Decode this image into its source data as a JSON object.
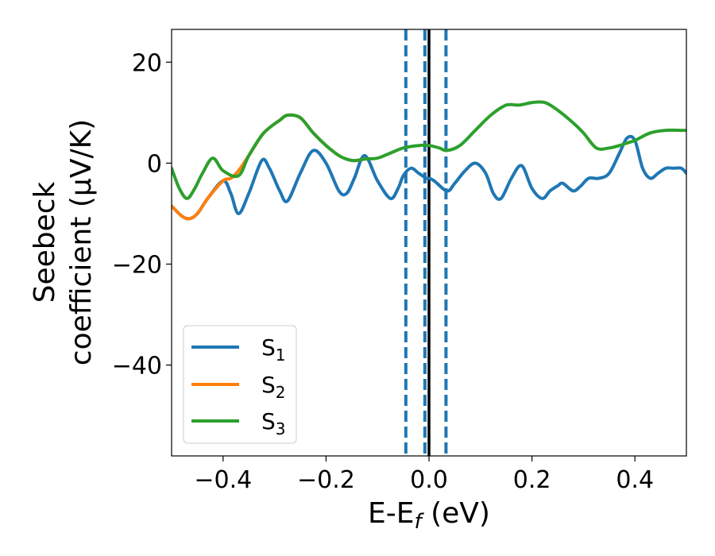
{
  "chart_data": {
    "type": "line",
    "title": "",
    "xlabel": {
      "main": "E-E",
      "sub": "f",
      "unit": " (eV)"
    },
    "ylabel": {
      "line1": "Seebeck",
      "line2": "coefficient  (μV/K)"
    },
    "xlim": [
      -0.5,
      0.5
    ],
    "ylim": [
      -58,
      26.5
    ],
    "x_ticks": [
      -0.4,
      -0.2,
      0.0,
      0.2,
      0.4
    ],
    "x_tick_labels": [
      "−0.4",
      "−0.2",
      "0.0",
      "0.2",
      "0.4"
    ],
    "y_ticks": [
      20,
      0,
      -20,
      -40
    ],
    "y_tick_labels": [
      "20",
      "0",
      "−20",
      "−40"
    ],
    "legend_position": "lower-left",
    "vlines": [
      {
        "x": -0.045,
        "style": "dashed",
        "color": "#1f77b4"
      },
      {
        "x": -0.008,
        "style": "dashed",
        "color": "#1f77b4"
      },
      {
        "x": 0.033,
        "style": "dashed",
        "color": "#1f77b4"
      },
      {
        "x": 0.0,
        "style": "solid",
        "color": "#000000"
      }
    ],
    "series": [
      {
        "name": "S",
        "sub": "1",
        "color": "#1f77b4",
        "x": [
          -0.5,
          -0.48,
          -0.465,
          -0.45,
          -0.43,
          -0.4,
          -0.385,
          -0.37,
          -0.35,
          -0.325,
          -0.31,
          -0.29,
          -0.275,
          -0.25,
          -0.225,
          -0.2,
          -0.175,
          -0.16,
          -0.145,
          -0.125,
          -0.1,
          -0.075,
          -0.06,
          -0.05,
          -0.035,
          -0.02,
          -0.005,
          0.0,
          0.01,
          0.035,
          0.05,
          0.07,
          0.09,
          0.11,
          0.125,
          0.14,
          0.16,
          0.18,
          0.2,
          0.22,
          0.235,
          0.25,
          0.26,
          0.28,
          0.295,
          0.31,
          0.33,
          0.35,
          0.37,
          0.385,
          0.4,
          0.415,
          0.43,
          0.445,
          0.46,
          0.475,
          0.49,
          0.5
        ],
        "y": [
          -8.5,
          -10.5,
          -11,
          -10,
          -7,
          -3.5,
          -6,
          -10,
          -6,
          0.5,
          -1,
          -5.5,
          -7.5,
          -2,
          2.5,
          0,
          -5.5,
          -6,
          -3,
          1.5,
          -3.5,
          -7,
          -5,
          -2.5,
          -1,
          -2,
          -3,
          -3,
          -3.5,
          -5.5,
          -4,
          -1.5,
          0,
          -2,
          -6,
          -7,
          -3,
          -0.5,
          -5,
          -7,
          -5.5,
          -4.5,
          -4,
          -5.5,
          -4.5,
          -3,
          -3,
          -2,
          2,
          5,
          4.5,
          -1,
          -3,
          -2,
          -1,
          -1,
          -1,
          -2
        ]
      },
      {
        "name": "S",
        "sub": "2",
        "color": "#ff7f0e",
        "x": [
          -0.5,
          -0.48,
          -0.465,
          -0.45,
          -0.43,
          -0.4,
          -0.385,
          -0.37,
          -0.35,
          -0.325,
          -0.31,
          -0.29,
          -0.275,
          -0.25,
          -0.225,
          -0.2,
          -0.175,
          -0.16,
          -0.145,
          -0.125
        ],
        "y": [
          -8.5,
          -10.5,
          -11,
          -10,
          -7,
          -3.5,
          -3,
          -1.5,
          1.5,
          5.5,
          7,
          8.5,
          9.5,
          9,
          6,
          3.5,
          1.5,
          0.8,
          0.5,
          0.8
        ]
      },
      {
        "name": "S",
        "sub": "3",
        "color": "#2ca02c",
        "x": [
          -0.5,
          -0.485,
          -0.47,
          -0.455,
          -0.44,
          -0.42,
          -0.4,
          -0.37,
          -0.35,
          -0.325,
          -0.31,
          -0.29,
          -0.275,
          -0.25,
          -0.225,
          -0.2,
          -0.175,
          -0.16,
          -0.145,
          -0.125,
          -0.1,
          -0.075,
          -0.05,
          -0.02,
          0.0,
          0.02,
          0.035,
          0.06,
          0.09,
          0.12,
          0.15,
          0.175,
          0.2,
          0.225,
          0.25,
          0.28,
          0.3,
          0.325,
          0.35,
          0.37,
          0.385,
          0.4,
          0.43,
          0.46,
          0.49,
          0.5
        ],
        "y": [
          -1,
          -5,
          -7,
          -5,
          -2,
          1,
          -1.5,
          -2.5,
          1.5,
          5.5,
          7,
          8.5,
          9.5,
          9,
          6,
          3.5,
          1.5,
          0.8,
          0.5,
          0.8,
          1,
          2,
          3,
          3.5,
          3.5,
          3,
          2.5,
          3.5,
          6.5,
          9.5,
          11.5,
          11.5,
          12,
          12,
          10.5,
          8,
          6,
          3,
          3,
          3.5,
          4,
          4.5,
          6,
          6.5,
          6.5,
          6.5
        ]
      }
    ]
  }
}
